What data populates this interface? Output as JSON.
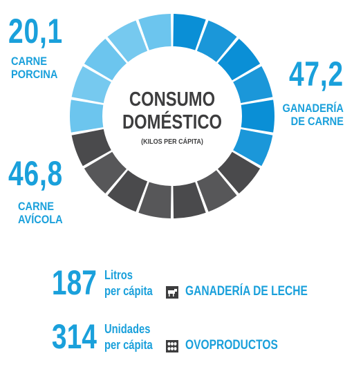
{
  "chart_data": {
    "type": "pie",
    "title": "CONSUMO DOMÉSTICO",
    "subtitle": "(KILOS PER CÁPITA)",
    "style": "segmented donut",
    "slices": [
      {
        "value": "47,2",
        "label": "GANADERÍA DE CARNE",
        "color": "#0a8fd6",
        "segments": 6
      },
      {
        "value": "46,8",
        "label": "CARNE AVÍCOLA",
        "color": "#4a4a4c",
        "segments": 7
      },
      {
        "value": "20,1",
        "label": "CARNE PORCINA",
        "color": "#6cc5ee",
        "segments": 5
      }
    ]
  },
  "labels": {
    "porcina_value": "20,1",
    "porcina_line1": "CARNE",
    "porcina_line2": "PORCINA",
    "ganaderia_value": "47,2",
    "ganaderia_line1": "GANADERÍA",
    "ganaderia_line2": "DE CARNE",
    "avicola_value": "46,8",
    "avicola_line1": "CARNE",
    "avicola_line2": "AVÍCOLA"
  },
  "center": {
    "line1": "CONSUMO",
    "line2": "DOMÉSTICO",
    "sub": "(KILOS PER CÁPITA)"
  },
  "stats": [
    {
      "number": "187",
      "line1": "Litros",
      "line2": "per cápita",
      "category": "GANADERÍA DE LECHE",
      "icon": "cow-icon"
    },
    {
      "number": "314",
      "line1": "Unidades",
      "line2": "per cápita",
      "category": "OVOPRODUCTOS",
      "icon": "eggs-icon"
    }
  ],
  "colors": {
    "accent": "#1aa0db",
    "dark": "#3d3d3e"
  }
}
